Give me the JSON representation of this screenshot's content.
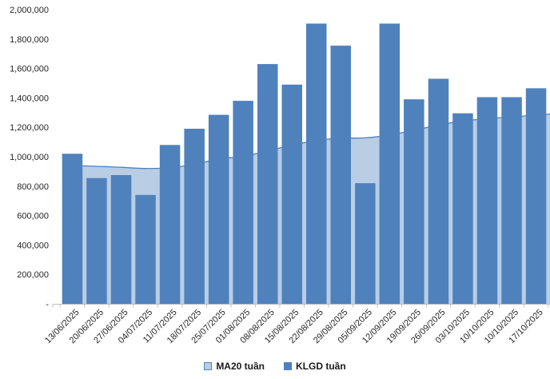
{
  "chart_data": {
    "type": "combo-bar-area",
    "title": "",
    "xlabel": "",
    "ylabel": "",
    "grid": false,
    "background": "#ffffff",
    "axis_color": "#BFBFBF",
    "text_color": "#262626",
    "legend_position": "bottom-center",
    "ylim": [
      0,
      2000000
    ],
    "yticks": {
      "values": [
        2000000,
        1800000,
        1600000,
        1400000,
        1200000,
        1000000,
        800000,
        600000,
        400000,
        200000,
        0
      ],
      "labels": [
        "2,000,000",
        "1,800,000",
        "1,600,000",
        "1,400,000",
        "1,200,000",
        "1,000,000",
        "800,000",
        "600,000",
        "400,000",
        "200,000",
        "-"
      ]
    },
    "categories": [
      "13/06/2025",
      "20/06/2025",
      "27/06/2025",
      "04/07/2025",
      "11/07/2025",
      "18/07/2025",
      "25/07/2025",
      "01/08/2025",
      "08/08/2025",
      "15/08/2025",
      "22/08/2025",
      "29/08/2025",
      "05/09/2025",
      "12/09/2025",
      "19/09/2025",
      "26/09/2025",
      "03/10/2025",
      "10/10/2025",
      "10/10/2025",
      "17/10/2025"
    ],
    "series": [
      {
        "name": "MA20 tuần",
        "type": "area",
        "fill": "#B9CDE5",
        "line": "#4F81BD",
        "values": [
          940000,
          935000,
          928000,
          920000,
          926000,
          948000,
          985000,
          1002000,
          1040000,
          1078000,
          1110000,
          1126000,
          1128000,
          1148000,
          1180000,
          1215000,
          1243000,
          1258000,
          1270000,
          1283000
        ]
      },
      {
        "name": "KLGD tuần",
        "type": "bar",
        "fill": "#4F81BD",
        "values": [
          1020000,
          855000,
          875000,
          740000,
          1080000,
          1190000,
          1285000,
          1380000,
          1630000,
          1490000,
          1905000,
          1755000,
          820000,
          1905000,
          1390000,
          1530000,
          1295000,
          1405000,
          1405000,
          1465000
        ]
      }
    ]
  }
}
